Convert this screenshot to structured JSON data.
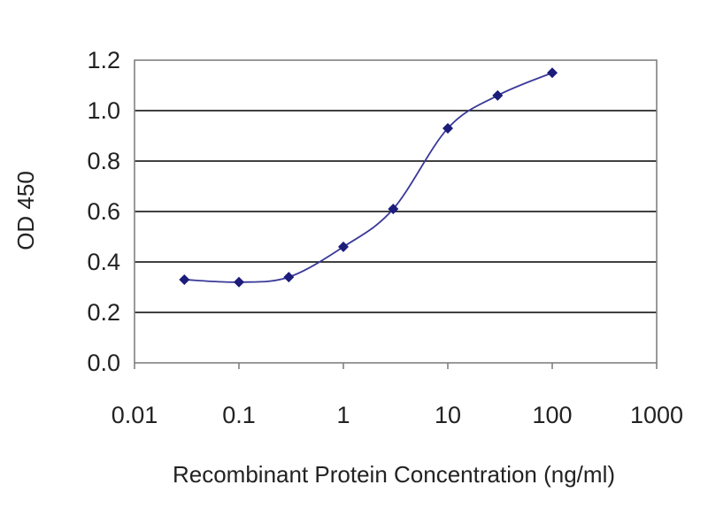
{
  "chart_data": {
    "type": "line",
    "title": "",
    "xlabel": "Recombinant Protein Concentration (ng/ml)",
    "ylabel": "OD 450",
    "x_scale": "log",
    "xlim": [
      0.01,
      1000
    ],
    "ylim": [
      0.0,
      1.2
    ],
    "x_ticks": [
      "0.01",
      "0.1",
      "1",
      "10",
      "100",
      "1000"
    ],
    "y_ticks": [
      "0.0",
      "0.2",
      "0.4",
      "0.6",
      "0.8",
      "1.0",
      "1.2"
    ],
    "grid": "horizontal",
    "legend": "none",
    "series": [
      {
        "x": [
          0.03,
          0.1,
          0.3,
          1,
          3,
          10,
          30,
          100
        ],
        "values": [
          0.33,
          0.32,
          0.34,
          0.46,
          0.61,
          0.93,
          1.06,
          1.15
        ]
      }
    ],
    "colors": {
      "line": "#3a3a9a",
      "marker": "#1c1c7a",
      "grid": "#000000",
      "frame": "#808080"
    }
  }
}
